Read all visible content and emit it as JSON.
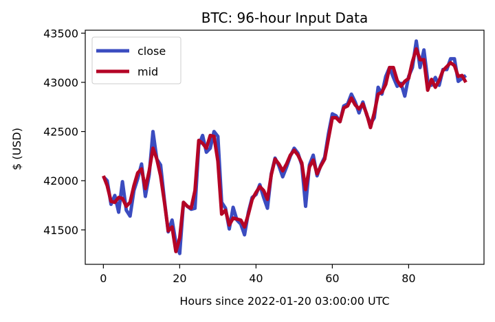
{
  "chart_data": {
    "type": "line",
    "title": "BTC: 96-hour Input Data",
    "xlabel": "Hours since 2022-01-20 03:00:00 UTC",
    "ylabel": "$ (USD)",
    "xlim": [
      -4.75,
      99.75
    ],
    "ylim": [
      41150,
      43530
    ],
    "xticks": [
      0,
      20,
      40,
      60,
      80
    ],
    "yticks": [
      41500,
      42000,
      42500,
      43000,
      43500
    ],
    "legend_position": "top-left",
    "series": [
      {
        "name": "close",
        "color": "#3b4cc0",
        "x": [
          0,
          1,
          2,
          3,
          4,
          5,
          6,
          7,
          8,
          9,
          10,
          11,
          12,
          13,
          14,
          15,
          16,
          17,
          18,
          19,
          20,
          21,
          22,
          23,
          24,
          25,
          26,
          27,
          28,
          29,
          30,
          31,
          32,
          33,
          34,
          35,
          36,
          37,
          38,
          39,
          40,
          41,
          42,
          43,
          44,
          45,
          46,
          47,
          48,
          49,
          50,
          51,
          52,
          53,
          54,
          55,
          56,
          57,
          58,
          59,
          60,
          61,
          62,
          63,
          64,
          65,
          66,
          67,
          68,
          69,
          70,
          71,
          72,
          73,
          74,
          75,
          76,
          77,
          78,
          79,
          80,
          81,
          82,
          83,
          84,
          85,
          86,
          87,
          88,
          89,
          90,
          91,
          92,
          93,
          94,
          95
        ],
        "values": [
          42040,
          42000,
          41760,
          41850,
          41680,
          41990,
          41700,
          41640,
          41900,
          42020,
          42170,
          41840,
          42060,
          42500,
          42220,
          42160,
          41800,
          41480,
          41600,
          41370,
          41260,
          41780,
          41740,
          41710,
          41720,
          42360,
          42460,
          42290,
          42330,
          42500,
          42450,
          41780,
          41720,
          41510,
          41730,
          41600,
          41560,
          41450,
          41680,
          41830,
          41860,
          41960,
          41830,
          41720,
          42070,
          42230,
          42150,
          42040,
          42140,
          42250,
          42330,
          42280,
          42160,
          41740,
          42160,
          42260,
          42050,
          42160,
          42240,
          42480,
          42680,
          42660,
          42600,
          42760,
          42780,
          42880,
          42800,
          42690,
          42800,
          42670,
          42580,
          42640,
          42950,
          42880,
          43060,
          43150,
          43050,
          42960,
          42990,
          42860,
          43060,
          43150,
          43420,
          43150,
          43330,
          43020,
          42970,
          43050,
          42970,
          43130,
          43130,
          43240,
          43240,
          43010,
          43040,
          43070
        ]
      },
      {
        "name": "mid",
        "color": "#b40426",
        "x": [
          0,
          1,
          2,
          3,
          4,
          5,
          6,
          7,
          8,
          9,
          10,
          11,
          12,
          13,
          14,
          15,
          16,
          17,
          18,
          19,
          20,
          21,
          22,
          23,
          24,
          25,
          26,
          27,
          28,
          29,
          30,
          31,
          32,
          33,
          34,
          35,
          36,
          37,
          38,
          39,
          40,
          41,
          42,
          43,
          44,
          45,
          46,
          47,
          48,
          49,
          50,
          51,
          52,
          53,
          54,
          55,
          56,
          57,
          58,
          59,
          60,
          61,
          62,
          63,
          64,
          65,
          66,
          67,
          68,
          69,
          70,
          71,
          72,
          73,
          74,
          75,
          76,
          77,
          78,
          79,
          80,
          81,
          82,
          83,
          84,
          85,
          86,
          87,
          88,
          89,
          90,
          91,
          92,
          93,
          94,
          95
        ],
        "values": [
          42050,
          41950,
          41790,
          41780,
          41830,
          41820,
          41740,
          41780,
          41950,
          42080,
          42120,
          41920,
          42100,
          42330,
          42220,
          42050,
          41780,
          41490,
          41530,
          41280,
          41420,
          41780,
          41740,
          41720,
          41900,
          42410,
          42380,
          42330,
          42460,
          42450,
          42200,
          41660,
          41700,
          41550,
          41620,
          41610,
          41600,
          41530,
          41660,
          41810,
          41880,
          41940,
          41900,
          41810,
          42060,
          42220,
          42170,
          42100,
          42170,
          42260,
          42310,
          42260,
          42180,
          41910,
          42140,
          42210,
          42070,
          42150,
          42220,
          42430,
          42640,
          42640,
          42600,
          42740,
          42760,
          42840,
          42770,
          42730,
          42780,
          42680,
          42540,
          42690,
          42880,
          42900,
          42980,
          43150,
          43150,
          43020,
          42960,
          43010,
          43040,
          43210,
          43340,
          43230,
          43230,
          42920,
          43030,
          42950,
          43020,
          43120,
          43160,
          43200,
          43170,
          43060,
          43070,
          43000
        ]
      }
    ]
  }
}
